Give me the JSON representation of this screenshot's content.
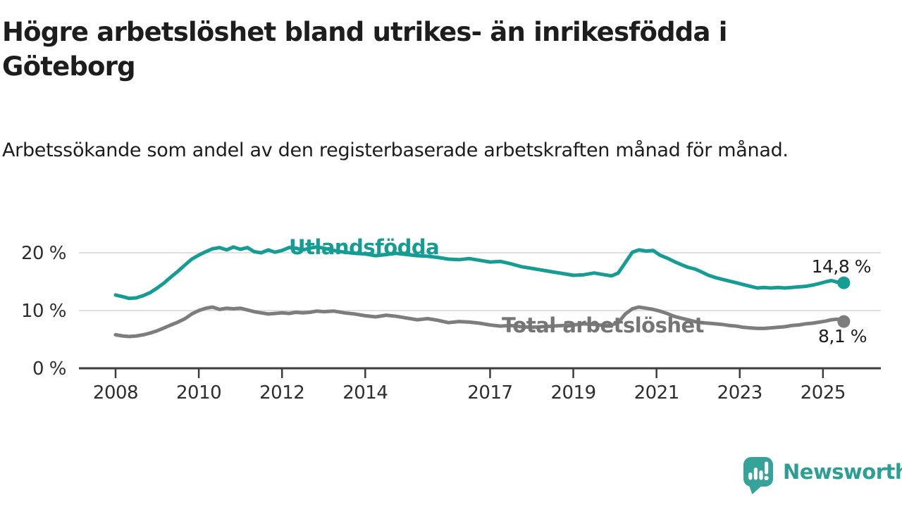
{
  "chart_data": {
    "type": "line",
    "title": "Högre arbetslöshet bland utrikes- än inrikesfödda i Göteborg",
    "subtitle": "Arbetssökande som andel av den registerbaserade arbetskraften månad för månad.",
    "x_axis": {
      "ticks": [
        2008,
        2010,
        2012,
        2014,
        2017,
        2019,
        2021,
        2023,
        2025
      ],
      "range": [
        2007.1,
        2026.4
      ],
      "grid": false
    },
    "y_axis": {
      "ticks": [
        0,
        10,
        20
      ],
      "suffix": " %",
      "range": [
        0,
        24.5
      ],
      "grid": true
    },
    "legend_position": "inline-labels",
    "series": [
      {
        "name": "Utlandsfödda",
        "color": "#169d93",
        "end_label": "14,8 %",
        "end_value": 14.8,
        "points": [
          [
            2008.0,
            12.7
          ],
          [
            2008.17,
            12.4
          ],
          [
            2008.33,
            12.1
          ],
          [
            2008.5,
            12.2
          ],
          [
            2008.67,
            12.6
          ],
          [
            2008.83,
            13.1
          ],
          [
            2009.0,
            13.9
          ],
          [
            2009.17,
            14.8
          ],
          [
            2009.33,
            15.8
          ],
          [
            2009.5,
            16.8
          ],
          [
            2009.67,
            17.9
          ],
          [
            2009.83,
            18.9
          ],
          [
            2010.0,
            19.6
          ],
          [
            2010.17,
            20.2
          ],
          [
            2010.33,
            20.7
          ],
          [
            2010.5,
            20.9
          ],
          [
            2010.67,
            20.5
          ],
          [
            2010.83,
            21.0
          ],
          [
            2011.0,
            20.6
          ],
          [
            2011.17,
            20.9
          ],
          [
            2011.33,
            20.2
          ],
          [
            2011.5,
            20.0
          ],
          [
            2011.67,
            20.5
          ],
          [
            2011.83,
            20.1
          ],
          [
            2012.0,
            20.4
          ],
          [
            2012.17,
            20.9
          ],
          [
            2012.33,
            20.8
          ],
          [
            2012.5,
            20.5
          ],
          [
            2012.67,
            20.8
          ],
          [
            2012.83,
            21.0
          ],
          [
            2013.0,
            20.8
          ],
          [
            2013.25,
            20.4
          ],
          [
            2013.5,
            20.1
          ],
          [
            2013.75,
            19.9
          ],
          [
            2014.0,
            19.8
          ],
          [
            2014.25,
            19.5
          ],
          [
            2014.5,
            19.7
          ],
          [
            2014.75,
            19.9
          ],
          [
            2015.0,
            19.7
          ],
          [
            2015.25,
            19.5
          ],
          [
            2015.5,
            19.4
          ],
          [
            2015.75,
            19.2
          ],
          [
            2016.0,
            18.9
          ],
          [
            2016.25,
            18.8
          ],
          [
            2016.5,
            19.0
          ],
          [
            2016.75,
            18.7
          ],
          [
            2017.0,
            18.4
          ],
          [
            2017.25,
            18.5
          ],
          [
            2017.5,
            18.1
          ],
          [
            2017.75,
            17.6
          ],
          [
            2018.0,
            17.3
          ],
          [
            2018.25,
            17.0
          ],
          [
            2018.5,
            16.7
          ],
          [
            2018.75,
            16.4
          ],
          [
            2019.0,
            16.1
          ],
          [
            2019.25,
            16.2
          ],
          [
            2019.5,
            16.5
          ],
          [
            2019.75,
            16.2
          ],
          [
            2019.92,
            16.0
          ],
          [
            2020.08,
            16.5
          ],
          [
            2020.25,
            18.3
          ],
          [
            2020.42,
            20.1
          ],
          [
            2020.58,
            20.5
          ],
          [
            2020.75,
            20.3
          ],
          [
            2020.92,
            20.4
          ],
          [
            2021.08,
            19.6
          ],
          [
            2021.25,
            19.1
          ],
          [
            2021.42,
            18.5
          ],
          [
            2021.58,
            18.0
          ],
          [
            2021.75,
            17.5
          ],
          [
            2021.92,
            17.2
          ],
          [
            2022.08,
            16.7
          ],
          [
            2022.25,
            16.1
          ],
          [
            2022.42,
            15.7
          ],
          [
            2022.58,
            15.4
          ],
          [
            2022.75,
            15.1
          ],
          [
            2022.92,
            14.8
          ],
          [
            2023.08,
            14.5
          ],
          [
            2023.25,
            14.2
          ],
          [
            2023.42,
            13.9
          ],
          [
            2023.58,
            14.0
          ],
          [
            2023.75,
            13.9
          ],
          [
            2023.92,
            14.0
          ],
          [
            2024.08,
            13.9
          ],
          [
            2024.25,
            14.0
          ],
          [
            2024.42,
            14.1
          ],
          [
            2024.58,
            14.2
          ],
          [
            2024.75,
            14.4
          ],
          [
            2024.92,
            14.7
          ],
          [
            2025.08,
            15.0
          ],
          [
            2025.2,
            15.2
          ],
          [
            2025.35,
            14.9
          ],
          [
            2025.5,
            14.8
          ]
        ]
      },
      {
        "name": "Total arbetslöshet",
        "color": "#7d7d7d",
        "end_label": "8,1 %",
        "end_value": 8.1,
        "points": [
          [
            2008.0,
            5.8
          ],
          [
            2008.17,
            5.6
          ],
          [
            2008.33,
            5.5
          ],
          [
            2008.5,
            5.6
          ],
          [
            2008.67,
            5.8
          ],
          [
            2008.83,
            6.1
          ],
          [
            2009.0,
            6.5
          ],
          [
            2009.17,
            7.0
          ],
          [
            2009.33,
            7.5
          ],
          [
            2009.5,
            8.0
          ],
          [
            2009.67,
            8.6
          ],
          [
            2009.83,
            9.4
          ],
          [
            2010.0,
            10.0
          ],
          [
            2010.17,
            10.4
          ],
          [
            2010.33,
            10.6
          ],
          [
            2010.5,
            10.2
          ],
          [
            2010.67,
            10.4
          ],
          [
            2010.83,
            10.3
          ],
          [
            2011.0,
            10.4
          ],
          [
            2011.17,
            10.1
          ],
          [
            2011.33,
            9.8
          ],
          [
            2011.5,
            9.6
          ],
          [
            2011.67,
            9.4
          ],
          [
            2011.83,
            9.5
          ],
          [
            2012.0,
            9.6
          ],
          [
            2012.17,
            9.5
          ],
          [
            2012.33,
            9.7
          ],
          [
            2012.5,
            9.6
          ],
          [
            2012.67,
            9.7
          ],
          [
            2012.83,
            9.9
          ],
          [
            2013.0,
            9.8
          ],
          [
            2013.25,
            9.9
          ],
          [
            2013.5,
            9.6
          ],
          [
            2013.75,
            9.4
          ],
          [
            2014.0,
            9.1
          ],
          [
            2014.25,
            8.9
          ],
          [
            2014.5,
            9.2
          ],
          [
            2014.75,
            9.0
          ],
          [
            2015.0,
            8.7
          ],
          [
            2015.25,
            8.4
          ],
          [
            2015.5,
            8.6
          ],
          [
            2015.75,
            8.3
          ],
          [
            2016.0,
            7.9
          ],
          [
            2016.25,
            8.1
          ],
          [
            2016.5,
            8.0
          ],
          [
            2016.75,
            7.8
          ],
          [
            2017.0,
            7.5
          ],
          [
            2017.25,
            7.3
          ],
          [
            2017.5,
            7.4
          ],
          [
            2017.75,
            7.2
          ],
          [
            2018.0,
            7.1
          ],
          [
            2018.25,
            7.2
          ],
          [
            2018.5,
            7.3
          ],
          [
            2018.75,
            7.4
          ],
          [
            2019.0,
            7.5
          ],
          [
            2019.25,
            7.7
          ],
          [
            2019.5,
            7.6
          ],
          [
            2019.75,
            7.4
          ],
          [
            2019.92,
            7.5
          ],
          [
            2020.08,
            7.9
          ],
          [
            2020.25,
            9.4
          ],
          [
            2020.42,
            10.3
          ],
          [
            2020.58,
            10.6
          ],
          [
            2020.75,
            10.4
          ],
          [
            2020.92,
            10.2
          ],
          [
            2021.08,
            9.9
          ],
          [
            2021.25,
            9.5
          ],
          [
            2021.42,
            9.0
          ],
          [
            2021.58,
            8.7
          ],
          [
            2021.75,
            8.4
          ],
          [
            2021.92,
            8.1
          ],
          [
            2022.08,
            7.9
          ],
          [
            2022.25,
            7.8
          ],
          [
            2022.42,
            7.7
          ],
          [
            2022.58,
            7.6
          ],
          [
            2022.75,
            7.4
          ],
          [
            2022.92,
            7.3
          ],
          [
            2023.08,
            7.1
          ],
          [
            2023.25,
            7.0
          ],
          [
            2023.42,
            6.9
          ],
          [
            2023.58,
            6.9
          ],
          [
            2023.75,
            7.0
          ],
          [
            2023.92,
            7.1
          ],
          [
            2024.08,
            7.2
          ],
          [
            2024.25,
            7.4
          ],
          [
            2024.42,
            7.5
          ],
          [
            2024.58,
            7.7
          ],
          [
            2024.75,
            7.8
          ],
          [
            2024.92,
            8.0
          ],
          [
            2025.08,
            8.2
          ],
          [
            2025.2,
            8.4
          ],
          [
            2025.35,
            8.5
          ],
          [
            2025.5,
            8.1
          ]
        ]
      }
    ],
    "colors": {
      "grid": "#d6d6d6",
      "axis": "#3c3c3c",
      "tick_text": "#2e2e2e"
    }
  },
  "logo": {
    "text": "Newsworthy",
    "color": "#2d9e94"
  }
}
